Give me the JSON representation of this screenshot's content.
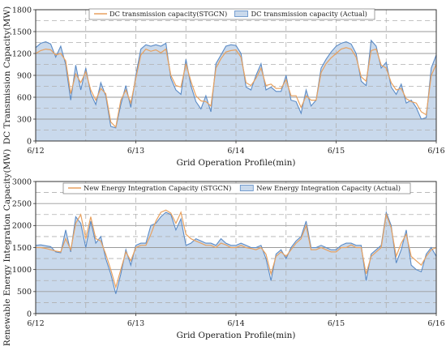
{
  "colors": {
    "stgcn_line": "#E8A15F",
    "actual_line": "#5B8BC6",
    "actual_fill": "#C9D9EC",
    "grid_solid": "#9a9a9a",
    "grid_dash": "#b0b0b0"
  },
  "chart_data": [
    {
      "type": "area",
      "xlabel": "Grid Operation Profile(min)",
      "ylabel": "DC Transmission Capacity(MW)",
      "x_ticks": [
        "6/12",
        "6/13",
        "6/14",
        "6/15",
        "6/16"
      ],
      "xlim": [
        0,
        4
      ],
      "ylim": [
        0,
        1800
      ],
      "y_ticks": [
        0,
        300,
        600,
        900,
        1200,
        1500,
        1800
      ],
      "grid": "on",
      "legend_placement": "top-center",
      "series": [
        {
          "name": "DC transmission capacity(STGCN)",
          "style": "line",
          "x": [
            0,
            0.05,
            0.1,
            0.15,
            0.2,
            0.25,
            0.3,
            0.35,
            0.4,
            0.45,
            0.5,
            0.55,
            0.6,
            0.65,
            0.7,
            0.75,
            0.8,
            0.85,
            0.9,
            0.95,
            1.0,
            1.05,
            1.1,
            1.15,
            1.2,
            1.25,
            1.3,
            1.35,
            1.4,
            1.45,
            1.5,
            1.55,
            1.6,
            1.65,
            1.7,
            1.75,
            1.8,
            1.85,
            1.9,
            1.95,
            2.0,
            2.05,
            2.1,
            2.15,
            2.2,
            2.25,
            2.3,
            2.35,
            2.4,
            2.45,
            2.5,
            2.55,
            2.6,
            2.65,
            2.7,
            2.75,
            2.8,
            2.85,
            2.9,
            2.95,
            3.0,
            3.05,
            3.1,
            3.15,
            3.2,
            3.25,
            3.3,
            3.35,
            3.4,
            3.45,
            3.5,
            3.55,
            3.6,
            3.65,
            3.7,
            3.75,
            3.8,
            3.85,
            3.9,
            3.95,
            4.0
          ],
          "values": [
            1200,
            1240,
            1260,
            1250,
            1180,
            1200,
            1100,
            650,
            920,
            800,
            950,
            700,
            560,
            720,
            650,
            260,
            190,
            560,
            700,
            520,
            860,
            1180,
            1260,
            1230,
            1250,
            1210,
            1260,
            900,
            760,
            740,
            1060,
            820,
            620,
            550,
            540,
            480,
            1000,
            1130,
            1220,
            1240,
            1250,
            1150,
            800,
            760,
            860,
            1000,
            760,
            780,
            720,
            720,
            840,
            620,
            620,
            460,
            620,
            560,
            560,
            940,
            1060,
            1140,
            1200,
            1260,
            1280,
            1260,
            1150,
            880,
            820,
            1240,
            1260,
            1040,
            1000,
            800,
            700,
            720,
            580,
            540,
            520,
            400,
            360,
            900,
            1050
          ]
        },
        {
          "name": "DC transmission capacity (Actual)",
          "style": "area",
          "x": [
            0,
            0.05,
            0.1,
            0.15,
            0.2,
            0.25,
            0.3,
            0.35,
            0.4,
            0.45,
            0.5,
            0.55,
            0.6,
            0.65,
            0.7,
            0.75,
            0.8,
            0.85,
            0.9,
            0.95,
            1.0,
            1.05,
            1.1,
            1.15,
            1.2,
            1.25,
            1.3,
            1.35,
            1.4,
            1.45,
            1.5,
            1.55,
            1.6,
            1.65,
            1.7,
            1.75,
            1.8,
            1.85,
            1.9,
            1.95,
            2.0,
            2.05,
            2.1,
            2.15,
            2.2,
            2.25,
            2.3,
            2.35,
            2.4,
            2.45,
            2.5,
            2.55,
            2.6,
            2.65,
            2.7,
            2.75,
            2.8,
            2.85,
            2.9,
            2.95,
            3.0,
            3.05,
            3.1,
            3.15,
            3.2,
            3.25,
            3.3,
            3.35,
            3.4,
            3.45,
            3.5,
            3.55,
            3.6,
            3.65,
            3.7,
            3.75,
            3.8,
            3.85,
            3.9,
            3.95,
            4.0
          ],
          "values": [
            1280,
            1340,
            1360,
            1330,
            1150,
            1300,
            1050,
            560,
            1040,
            700,
            1000,
            650,
            500,
            800,
            620,
            200,
            180,
            500,
            760,
            460,
            900,
            1260,
            1320,
            1300,
            1320,
            1300,
            1340,
            860,
            700,
            640,
            1120,
            760,
            540,
            440,
            620,
            400,
            1060,
            1180,
            1300,
            1320,
            1310,
            1200,
            740,
            700,
            900,
            1060,
            700,
            740,
            680,
            680,
            900,
            560,
            540,
            380,
            700,
            480,
            560,
            1000,
            1120,
            1220,
            1300,
            1340,
            1360,
            1330,
            1200,
            820,
            760,
            1380,
            1300,
            1000,
            1080,
            740,
            640,
            780,
            520,
            560,
            460,
            300,
            320,
            1000,
            1180
          ]
        }
      ]
    },
    {
      "type": "area",
      "xlabel": "Grid Operation Profile(min)",
      "ylabel": "Renewable Energy Integration Capacity(MW)",
      "x_ticks": [
        "6/12",
        "6/13",
        "6/14",
        "6/15",
        "6/16"
      ],
      "xlim": [
        0,
        4
      ],
      "ylim": [
        0,
        3000
      ],
      "y_ticks": [
        0,
        500,
        1000,
        1500,
        2000,
        2500,
        3000
      ],
      "grid": "on",
      "legend_placement": "top-center",
      "series": [
        {
          "name": "New Energy Integration Capacity (STGCN)",
          "style": "line",
          "x": [
            0,
            0.05,
            0.1,
            0.15,
            0.2,
            0.25,
            0.3,
            0.35,
            0.4,
            0.45,
            0.5,
            0.55,
            0.6,
            0.65,
            0.7,
            0.75,
            0.8,
            0.85,
            0.9,
            0.95,
            1.0,
            1.05,
            1.1,
            1.15,
            1.2,
            1.25,
            1.3,
            1.35,
            1.4,
            1.45,
            1.5,
            1.55,
            1.6,
            1.65,
            1.7,
            1.75,
            1.8,
            1.85,
            1.9,
            1.95,
            2.0,
            2.05,
            2.1,
            2.15,
            2.2,
            2.25,
            2.3,
            2.35,
            2.4,
            2.45,
            2.5,
            2.55,
            2.6,
            2.65,
            2.7,
            2.75,
            2.8,
            2.85,
            2.9,
            2.95,
            3.0,
            3.05,
            3.1,
            3.15,
            3.2,
            3.25,
            3.3,
            3.35,
            3.4,
            3.45,
            3.5,
            3.55,
            3.6,
            3.65,
            3.7,
            3.75,
            3.8,
            3.85,
            3.9,
            3.95,
            4.0
          ],
          "values": [
            1500,
            1500,
            1480,
            1450,
            1420,
            1400,
            1700,
            1450,
            2050,
            2250,
            1700,
            2200,
            1700,
            1650,
            1350,
            1000,
            600,
            1000,
            1400,
            1200,
            1500,
            1550,
            1550,
            1800,
            2100,
            2300,
            2350,
            2280,
            2050,
            2300,
            1800,
            1700,
            1650,
            1600,
            1550,
            1550,
            1500,
            1600,
            1560,
            1500,
            1500,
            1550,
            1500,
            1480,
            1450,
            1500,
            1350,
            900,
            1300,
            1400,
            1300,
            1450,
            1600,
            1700,
            2000,
            1450,
            1450,
            1500,
            1450,
            1400,
            1400,
            1500,
            1500,
            1560,
            1500,
            1500,
            900,
            1300,
            1400,
            1500,
            2250,
            1950,
            1300,
            1600,
            1800,
            1300,
            1200,
            1100,
            1300,
            1450,
            1500
          ]
        },
        {
          "name": "New Energy Integration Capacity (Actual)",
          "style": "area",
          "x": [
            0,
            0.05,
            0.1,
            0.15,
            0.2,
            0.25,
            0.3,
            0.35,
            0.4,
            0.45,
            0.5,
            0.55,
            0.6,
            0.65,
            0.7,
            0.75,
            0.8,
            0.85,
            0.9,
            0.95,
            1.0,
            1.05,
            1.1,
            1.15,
            1.2,
            1.25,
            1.3,
            1.35,
            1.4,
            1.45,
            1.5,
            1.55,
            1.6,
            1.65,
            1.7,
            1.75,
            1.8,
            1.85,
            1.9,
            1.95,
            2.0,
            2.05,
            2.1,
            2.15,
            2.2,
            2.25,
            2.3,
            2.35,
            2.4,
            2.45,
            2.5,
            2.55,
            2.6,
            2.65,
            2.7,
            2.75,
            2.8,
            2.85,
            2.9,
            2.95,
            3.0,
            3.05,
            3.1,
            3.15,
            3.2,
            3.25,
            3.3,
            3.35,
            3.4,
            3.45,
            3.5,
            3.55,
            3.6,
            3.65,
            3.7,
            3.75,
            3.8,
            3.85,
            3.9,
            3.95,
            4.0
          ],
          "values": [
            1550,
            1560,
            1540,
            1520,
            1400,
            1380,
            1900,
            1400,
            2200,
            2050,
            1500,
            2100,
            1600,
            1750,
            1250,
            900,
            450,
            900,
            1450,
            1100,
            1550,
            1600,
            1600,
            2000,
            2050,
            2200,
            2300,
            2250,
            1900,
            2150,
            1550,
            1600,
            1700,
            1650,
            1600,
            1600,
            1550,
            1700,
            1600,
            1550,
            1550,
            1600,
            1550,
            1500,
            1500,
            1550,
            1250,
            750,
            1350,
            1450,
            1250,
            1500,
            1650,
            1750,
            2100,
            1500,
            1500,
            1550,
            1500,
            1450,
            1450,
            1550,
            1600,
            1600,
            1550,
            1550,
            750,
            1350,
            1450,
            1550,
            2300,
            2000,
            1150,
            1450,
            1900,
            1100,
            1000,
            950,
            1350,
            1500,
            1300
          ]
        }
      ]
    }
  ]
}
